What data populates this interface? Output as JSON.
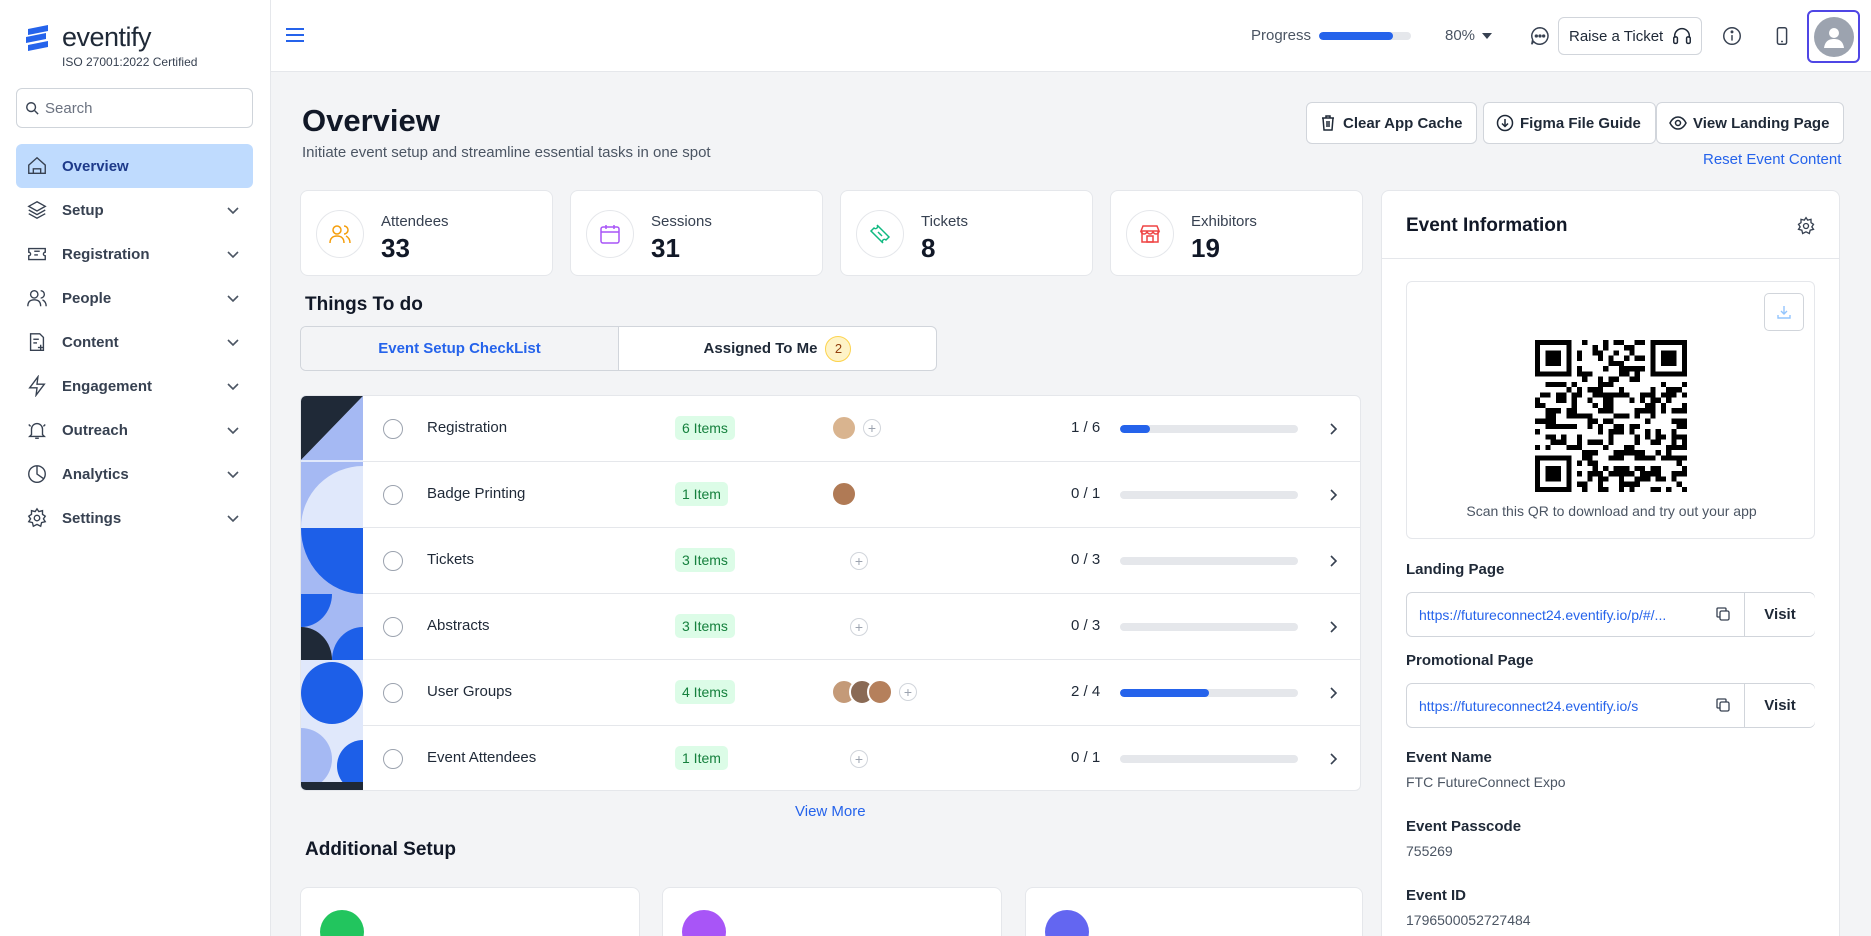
{
  "brand": {
    "name": "eventify",
    "certification": "ISO 27001:2022 Certified",
    "color": "#2563eb"
  },
  "sidebar": {
    "search_placeholder": "Search",
    "items": [
      {
        "label": "Overview",
        "icon": "home-icon",
        "active": true
      },
      {
        "label": "Setup",
        "icon": "layers-icon"
      },
      {
        "label": "Registration",
        "icon": "ticket-icon"
      },
      {
        "label": "People",
        "icon": "users-icon"
      },
      {
        "label": "Content",
        "icon": "file-plus-icon"
      },
      {
        "label": "Engagement",
        "icon": "bolt-icon"
      },
      {
        "label": "Outreach",
        "icon": "bell-icon"
      },
      {
        "label": "Analytics",
        "icon": "pie-chart-icon"
      },
      {
        "label": "Settings",
        "icon": "gear-icon"
      }
    ]
  },
  "topbar": {
    "progress_label": "Progress",
    "progress_value": 0.8,
    "progress_text": "80%",
    "raise_ticket": "Raise a Ticket"
  },
  "header": {
    "title": "Overview",
    "subtitle": "Initiate event setup and streamline essential tasks in one spot",
    "clear_cache": "Clear App Cache",
    "figma_guide": "Figma File Guide",
    "view_landing": "View Landing Page",
    "reset_link": "Reset Event Content"
  },
  "stats": [
    {
      "label": "Attendees",
      "value": "33",
      "color": "#f59e0b"
    },
    {
      "label": "Sessions",
      "value": "31",
      "color": "#a855f7"
    },
    {
      "label": "Tickets",
      "value": "8",
      "color": "#10b981"
    },
    {
      "label": "Exhibitors",
      "value": "19",
      "color": "#ef4444"
    }
  ],
  "todo": {
    "title": "Things To do",
    "tabs": [
      {
        "label": "Event Setup CheckList"
      },
      {
        "label": "Assigned To Me",
        "badge": "2"
      }
    ],
    "rows": [
      {
        "name": "Registration",
        "items": "6 Items",
        "count": "1 / 6",
        "progress": 0.1667,
        "avatars": 1
      },
      {
        "name": "Badge Printing",
        "items": "1 Item",
        "count": "0 / 1",
        "progress": 0,
        "avatars": 1
      },
      {
        "name": "Tickets",
        "items": "3 Items",
        "count": "0 / 3",
        "progress": 0,
        "avatars": 0
      },
      {
        "name": "Abstracts",
        "items": "3 Items",
        "count": "0 / 3",
        "progress": 0,
        "avatars": 0
      },
      {
        "name": "User Groups",
        "items": "4 Items",
        "count": "2 / 4",
        "progress": 0.5,
        "avatars": 3
      },
      {
        "name": "Event Attendees",
        "items": "1 Item",
        "count": "0 / 1",
        "progress": 0,
        "avatars": 0
      }
    ],
    "view_more": "View More"
  },
  "additional": {
    "title": "Additional Setup"
  },
  "event_info": {
    "title": "Event Information",
    "qr_caption": "Scan this QR to download and try out your app",
    "landing_label": "Landing Page",
    "landing_url": "https://futureconnect24.eventify.io/p/#/...",
    "promo_label": "Promotional Page",
    "promo_url": "https://futureconnect24.eventify.io/s",
    "visit": "Visit",
    "name_label": "Event Name",
    "name_value": "FTC FutureConnect Expo",
    "passcode_label": "Event Passcode",
    "passcode_value": "755269",
    "id_label": "Event ID",
    "id_value": "1796500052727484"
  }
}
